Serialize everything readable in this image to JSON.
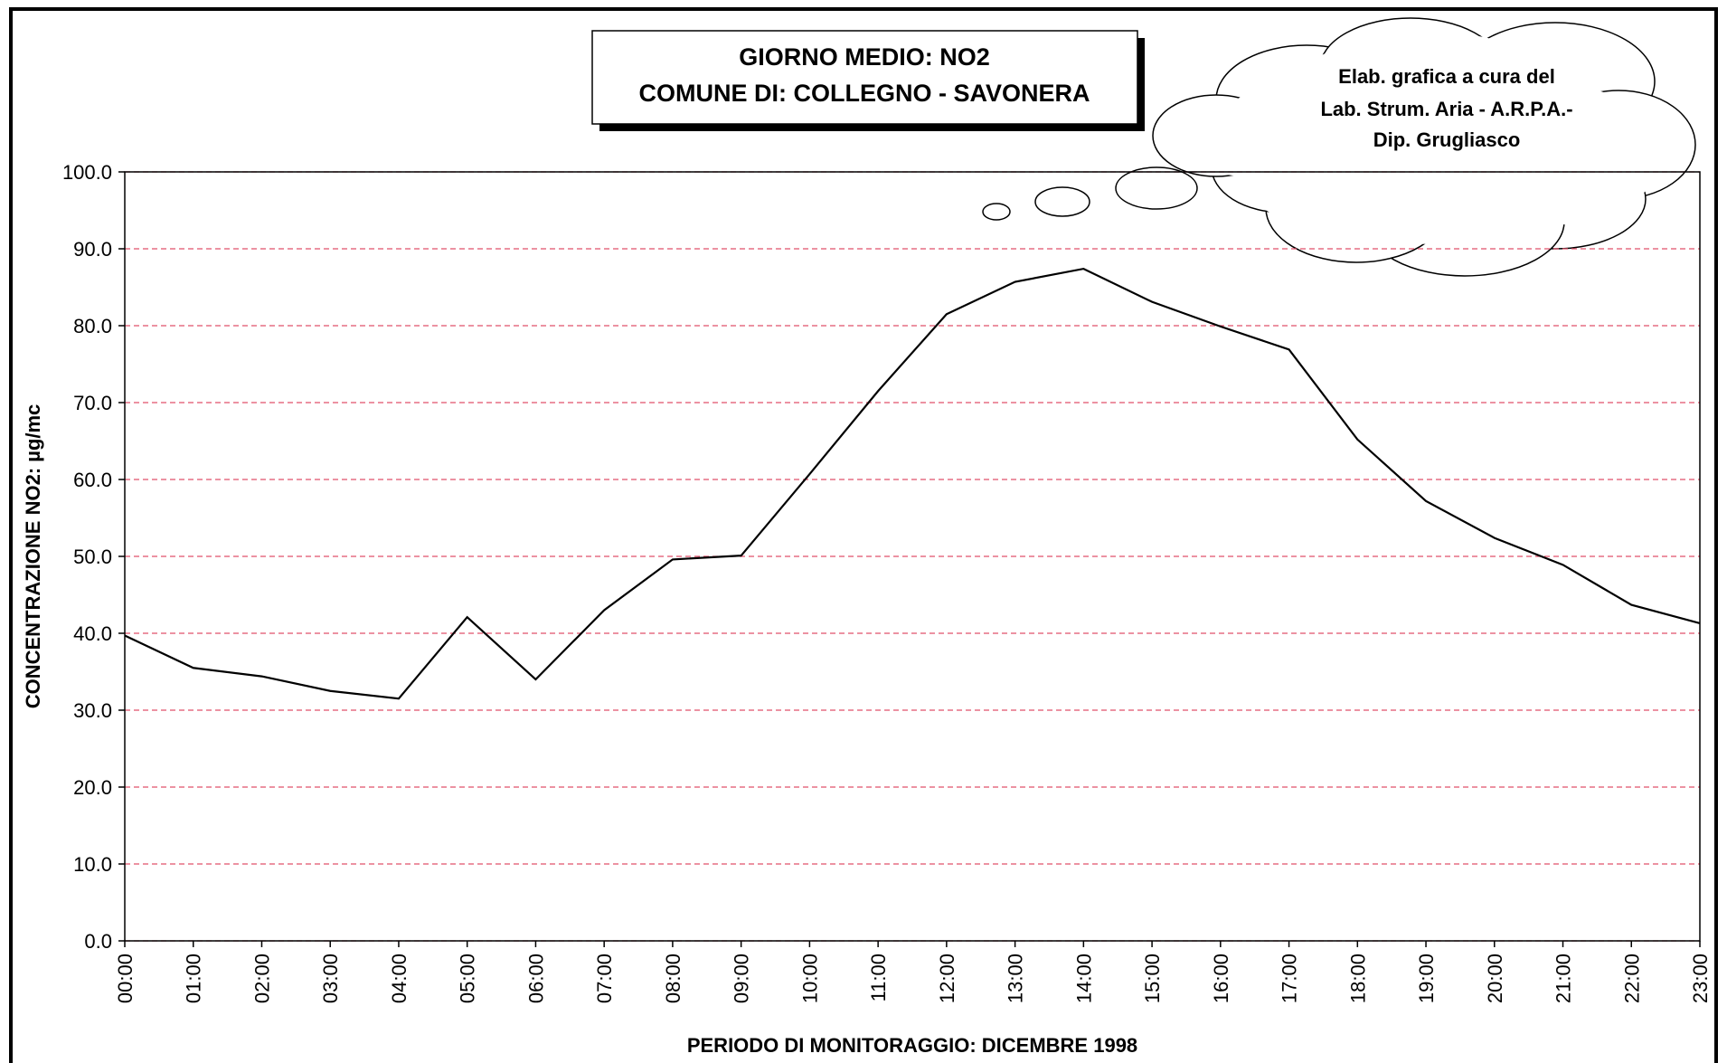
{
  "chart_data": {
    "type": "line",
    "title": "GIORNO MEDIO: NO2",
    "subtitle": "COMUNE DI: COLLEGNO - SAVONERA",
    "annotation": [
      "Elab. grafica a cura del",
      "Lab. Strum. Aria - A.R.P.A.-",
      "Dip. Grugliasco"
    ],
    "x_label": "PERIODO DI MONITORAGGIO: DICEMBRE 1998",
    "y_label": "CONCENTRAZIONE NO2:  µg/mc",
    "categories": [
      "00:00",
      "01:00",
      "02:00",
      "03:00",
      "04:00",
      "05:00",
      "06:00",
      "07:00",
      "08:00",
      "09:00",
      "10:00",
      "11:00",
      "12:00",
      "13:00",
      "14:00",
      "15:00",
      "16:00",
      "17:00",
      "18:00",
      "19:00",
      "20:00",
      "21:00",
      "22:00",
      "23:00"
    ],
    "values": [
      39.7,
      35.5,
      34.4,
      32.5,
      31.5,
      42.1,
      34.0,
      43.0,
      49.6,
      50.1,
      60.7,
      71.5,
      81.5,
      85.7,
      87.4,
      83.1,
      79.9,
      76.9,
      65.2,
      57.2,
      52.4,
      48.9,
      43.7,
      41.3
    ],
    "color": "#000000",
    "ylim": [
      0,
      100
    ],
    "yticks": [
      {
        "value": 0,
        "label": "0.0"
      },
      {
        "value": 10,
        "label": "10.0"
      },
      {
        "value": 20,
        "label": "20.0"
      },
      {
        "value": 30,
        "label": "30.0"
      },
      {
        "value": 40,
        "label": "40.0"
      },
      {
        "value": 50,
        "label": "50.0"
      },
      {
        "value": 60,
        "label": "60.0"
      },
      {
        "value": 70,
        "label": "70.0"
      },
      {
        "value": 80,
        "label": "80.0"
      },
      {
        "value": 90,
        "label": "90.0"
      },
      {
        "value": 100,
        "label": "100.0"
      }
    ],
    "grid": true,
    "grid_color": "#e0506a"
  }
}
